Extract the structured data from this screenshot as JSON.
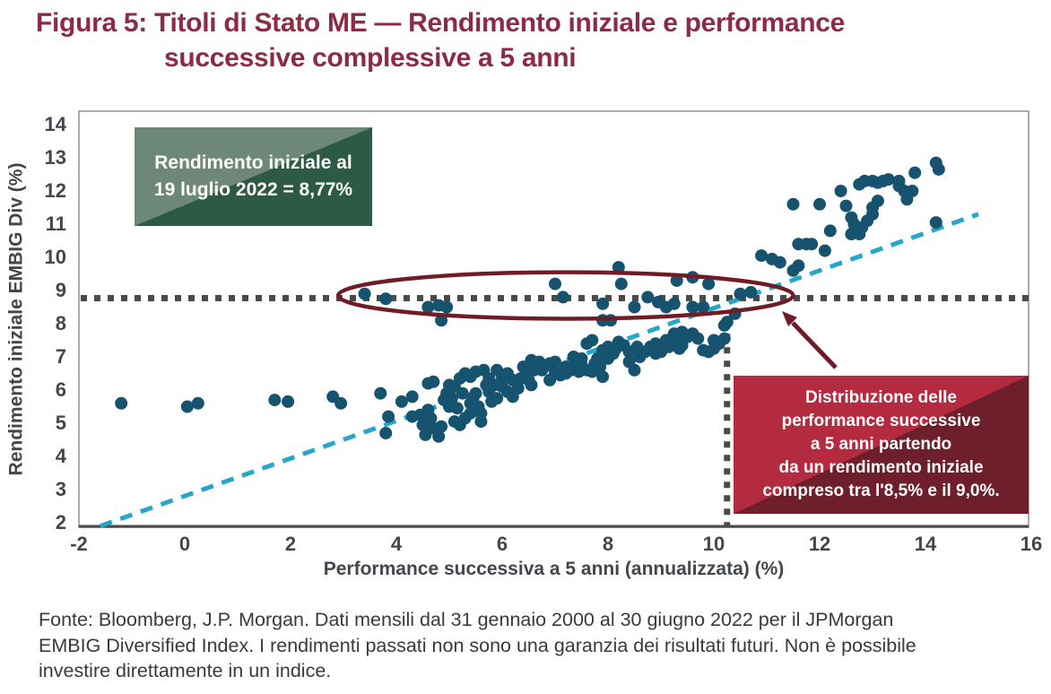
{
  "figure": {
    "title_line1": "Figura 5: Titoli di Stato ME — Rendimento iniziale e performance",
    "title_line2": "successive complessive a 5 anni"
  },
  "annotations": {
    "initial_yield_box": {
      "line1": "Rendimento iniziale al",
      "line2": "19 luglio 2022 = 8,77%"
    },
    "distribution_box": {
      "lines": [
        "Distribuzione delle",
        "performance successive",
        "a 5 anni partendo",
        "da un rendimento iniziale",
        "compreso tra l'8,5% e il 9,0%."
      ]
    }
  },
  "chart_data": {
    "type": "scatter",
    "xlabel": "Performance successiva a 5 anni (annualizzata) (%)",
    "ylabel": "Rendimento iniziale EMBIG Div (%)",
    "xlim": [
      -2,
      16
    ],
    "ylim": [
      2,
      14
    ],
    "x_ticks": [
      -2,
      0,
      2,
      4,
      6,
      8,
      10,
      12,
      14,
      16
    ],
    "y_ticks": [
      14,
      13,
      12,
      11,
      10,
      9,
      8,
      7,
      6,
      5,
      4,
      3,
      2
    ],
    "grid": false,
    "reference_lines": {
      "horizontal_y": 8.77,
      "vertical_x": 10.25,
      "vertical_top_y": 8.1
    },
    "trendline": {
      "x1": -1.6,
      "y1": 1.9,
      "x2": 15.0,
      "y2": 11.3
    },
    "highlight_ellipse": {
      "cx": 7.2,
      "cy": 8.85,
      "rx": 4.3,
      "ry": 0.7
    },
    "colors": {
      "dot": "#16536e",
      "trendline": "#27a6c9",
      "reference": "#4a4a4a",
      "annotation": "#701c26",
      "border": "#ababab",
      "axis_text": "#41474d",
      "footer_text": "#3a3a3a",
      "title": "#8b2b46",
      "green_light": "#6d8878",
      "green_dark": "#2d5947",
      "red_light": "#b42b40",
      "red_dark": "#6f1f2b"
    },
    "points": [
      [
        -1.2,
        5.6
      ],
      [
        0.05,
        5.5
      ],
      [
        0.25,
        5.6
      ],
      [
        1.7,
        5.7
      ],
      [
        1.95,
        5.65
      ],
      [
        2.8,
        5.8
      ],
      [
        2.95,
        5.6
      ],
      [
        3.7,
        5.9
      ],
      [
        3.85,
        5.2
      ],
      [
        3.8,
        4.7
      ],
      [
        3.4,
        8.9
      ],
      [
        3.8,
        8.75
      ],
      [
        4.6,
        8.5
      ],
      [
        4.8,
        8.55
      ],
      [
        4.95,
        8.5
      ],
      [
        4.85,
        8.1
      ],
      [
        7.0,
        9.2
      ],
      [
        7.15,
        8.8
      ],
      [
        7.9,
        8.6
      ],
      [
        7.9,
        8.1
      ],
      [
        8.05,
        8.1
      ],
      [
        8.2,
        9.7
      ],
      [
        8.25,
        9.2
      ],
      [
        8.5,
        8.5
      ],
      [
        8.75,
        8.8
      ],
      [
        8.95,
        8.65
      ],
      [
        9.1,
        8.5
      ],
      [
        9.25,
        8.6
      ],
      [
        9.3,
        9.3
      ],
      [
        9.6,
        9.4
      ],
      [
        9.6,
        8.5
      ],
      [
        9.8,
        8.5
      ],
      [
        9.9,
        9.2
      ],
      [
        10.4,
        8.3
      ],
      [
        10.5,
        8.9
      ],
      [
        10.7,
        8.95
      ],
      [
        10.9,
        10.05
      ],
      [
        11.1,
        9.95
      ],
      [
        11.25,
        9.85
      ],
      [
        11.5,
        9.6
      ],
      [
        11.6,
        9.75
      ],
      [
        11.5,
        11.6
      ],
      [
        12.0,
        11.6
      ],
      [
        11.6,
        10.4
      ],
      [
        11.75,
        10.4
      ],
      [
        11.85,
        10.4
      ],
      [
        12.1,
        10.2
      ],
      [
        12.2,
        10.8
      ],
      [
        12.4,
        12.0
      ],
      [
        12.5,
        11.55
      ],
      [
        12.6,
        11.2
      ],
      [
        12.65,
        11.0
      ],
      [
        12.6,
        10.7
      ],
      [
        12.75,
        10.7
      ],
      [
        12.8,
        10.9
      ],
      [
        12.9,
        11.1
      ],
      [
        13.0,
        11.3
      ],
      [
        13.0,
        11.5
      ],
      [
        13.1,
        11.7
      ],
      [
        12.75,
        12.2
      ],
      [
        12.85,
        12.3
      ],
      [
        13.0,
        12.3
      ],
      [
        13.1,
        12.25
      ],
      [
        13.2,
        12.3
      ],
      [
        13.3,
        12.35
      ],
      [
        13.5,
        12.3
      ],
      [
        13.5,
        12.15
      ],
      [
        13.6,
        12.0
      ],
      [
        13.75,
        12.0
      ],
      [
        13.65,
        11.75
      ],
      [
        13.8,
        12.55
      ],
      [
        14.2,
        12.85
      ],
      [
        14.25,
        12.65
      ],
      [
        14.2,
        11.05
      ],
      [
        4.1,
        5.65
      ],
      [
        4.3,
        5.8
      ],
      [
        4.3,
        5.2
      ],
      [
        4.45,
        5.25
      ],
      [
        4.5,
        4.95
      ],
      [
        4.55,
        4.65
      ],
      [
        4.6,
        6.2
      ],
      [
        4.7,
        6.25
      ],
      [
        4.6,
        5.4
      ],
      [
        4.65,
        5.15
      ],
      [
        4.7,
        4.85
      ],
      [
        4.8,
        4.6
      ],
      [
        4.85,
        4.9
      ],
      [
        4.9,
        5.7
      ],
      [
        5.0,
        6.15
      ],
      [
        5.1,
        6.1
      ],
      [
        5.1,
        5.05
      ],
      [
        5.2,
        4.95
      ],
      [
        5.2,
        6.35
      ],
      [
        5.3,
        6.5
      ],
      [
        5.4,
        6.4
      ],
      [
        5.4,
        5.6
      ],
      [
        5.4,
        5.3
      ],
      [
        5.45,
        5.75
      ],
      [
        5.5,
        6.55
      ],
      [
        5.65,
        6.6
      ],
      [
        5.75,
        6.35
      ],
      [
        5.75,
        5.95
      ],
      [
        5.8,
        5.65
      ],
      [
        5.85,
        6.15
      ],
      [
        5.9,
        6.6
      ],
      [
        6.0,
        6.4
      ],
      [
        6.1,
        6.5
      ],
      [
        6.1,
        5.95
      ],
      [
        6.2,
        5.8
      ],
      [
        6.2,
        6.3
      ],
      [
        6.3,
        6.05
      ],
      [
        6.35,
        6.35
      ],
      [
        6.7,
        6.85
      ],
      [
        6.7,
        6.75
      ],
      [
        6.85,
        6.75
      ],
      [
        6.9,
        6.8
      ],
      [
        7.0,
        6.55
      ],
      [
        7.1,
        6.45
      ],
      [
        7.2,
        6.7
      ],
      [
        7.2,
        6.5
      ],
      [
        7.4,
        6.8
      ],
      [
        7.5,
        6.95
      ],
      [
        7.6,
        6.6
      ],
      [
        7.7,
        6.55
      ],
      [
        7.8,
        6.95
      ],
      [
        7.9,
        6.4
      ],
      [
        7.6,
        7.4
      ],
      [
        7.7,
        7.5
      ],
      [
        5.0,
        5.5
      ],
      [
        5.15,
        5.45
      ],
      [
        5.3,
        5.15
      ],
      [
        5.55,
        5.5
      ],
      [
        5.6,
        5.3
      ],
      [
        5.6,
        5.05
      ],
      [
        5.9,
        5.75
      ],
      [
        6.0,
        6.1
      ],
      [
        6.45,
        6.5
      ],
      [
        6.5,
        6.3
      ],
      [
        6.55,
        6.15
      ],
      [
        6.6,
        6.6
      ],
      [
        4.95,
        5.9
      ],
      [
        5.05,
        5.75
      ],
      [
        5.25,
        5.9
      ],
      [
        5.5,
        5.9
      ],
      [
        5.7,
        6.15
      ],
      [
        6.4,
        6.7
      ],
      [
        6.55,
        6.9
      ],
      [
        6.75,
        6.6
      ],
      [
        6.9,
        6.3
      ],
      [
        7.0,
        6.85
      ],
      [
        7.3,
        6.6
      ],
      [
        7.35,
        7.0
      ],
      [
        7.5,
        6.75
      ],
      [
        7.45,
        6.55
      ],
      [
        8.0,
        7.3
      ],
      [
        8.6,
        7.0
      ],
      [
        8.55,
        7.3
      ],
      [
        9.15,
        7.3
      ],
      [
        7.75,
        6.8
      ],
      [
        7.85,
        6.7
      ],
      [
        7.9,
        7.2
      ],
      [
        8.0,
        6.95
      ],
      [
        8.1,
        7.1
      ],
      [
        8.15,
        7.25
      ],
      [
        8.2,
        7.45
      ],
      [
        8.3,
        7.35
      ],
      [
        8.4,
        7.15
      ],
      [
        8.4,
        6.85
      ],
      [
        8.5,
        6.6
      ],
      [
        8.7,
        7.15
      ],
      [
        8.8,
        7.3
      ],
      [
        8.85,
        7.2
      ],
      [
        8.9,
        7.1
      ],
      [
        9.0,
        7.15
      ],
      [
        8.9,
        7.4
      ],
      [
        9.0,
        7.35
      ],
      [
        9.1,
        7.5
      ],
      [
        9.2,
        7.55
      ],
      [
        9.25,
        7.7
      ],
      [
        9.3,
        7.5
      ],
      [
        9.35,
        7.25
      ],
      [
        9.4,
        7.35
      ],
      [
        9.5,
        7.6
      ],
      [
        9.6,
        7.7
      ],
      [
        9.7,
        7.55
      ],
      [
        9.8,
        7.2
      ],
      [
        9.9,
        7.15
      ],
      [
        10.0,
        7.25
      ],
      [
        10.05,
        7.45
      ],
      [
        10.1,
        7.4
      ],
      [
        9.4,
        7.75
      ],
      [
        10.0,
        7.5
      ],
      [
        10.2,
        7.95
      ],
      [
        10.2,
        7.55
      ],
      [
        10.25,
        8.05
      ]
    ]
  },
  "footer": {
    "line1": "Fonte: Bloomberg, J.P. Morgan. Dati mensili dal 31 gennaio 2000 al 30 giugno 2022 per il JPMorgan",
    "line2": "EMBIG Diversified Index. I rendimenti passati non sono una garanzia dei risultati futuri. Non è possibile",
    "line3": "investire direttamente in un indice."
  }
}
